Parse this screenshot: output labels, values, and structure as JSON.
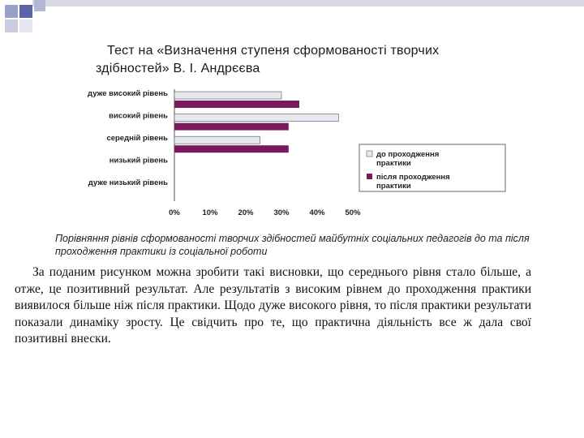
{
  "title": {
    "line1": "Тест на «Визначення ступеня сформованості творчих",
    "line2": "здібностей»  В. І. Андрєєва"
  },
  "chart_data": {
    "type": "bar",
    "orientation": "horizontal",
    "categories": [
      "дуже високий рівень",
      "високий рівень",
      "середній рівень",
      "низький рівень",
      "дуже низький рівень"
    ],
    "series": [
      {
        "name": "до проходження практики",
        "values": [
          30,
          46,
          24,
          0,
          0
        ],
        "color": "#e8e8f0"
      },
      {
        "name": "після проходження практики",
        "values": [
          35,
          32,
          32,
          0,
          0
        ],
        "color": "#7a1a5e"
      }
    ],
    "x_ticks": [
      "0%",
      "10%",
      "20%",
      "30%",
      "40%",
      "50%"
    ],
    "xlim": [
      0,
      50
    ],
    "legend_position": "right",
    "grid": false
  },
  "caption": "Порівняння рівнів сформованості творчих здібностей майбутніх соціальних педагогів до та після проходження практики із соціальної роботи",
  "body_text": "За поданим рисунком можна зробити такі висновки, що середнього рівня стало більше, а отже, це позитивний результат. Але результатів з високим рівнем до проходження практики виявилося більше ніж після практики. Щодо дуже високого рівня, то після практики результати показали динаміку зросту. Це свідчить про те, що практична діяльність все ж дала свої позитивні внески."
}
